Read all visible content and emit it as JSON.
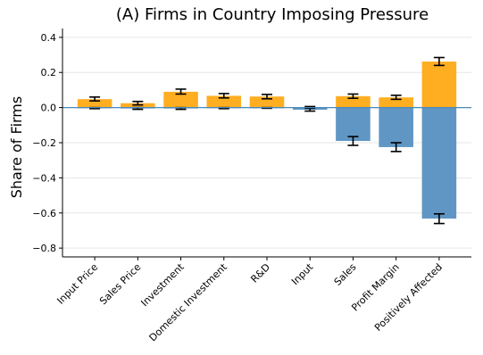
{
  "chart_data": {
    "type": "bar",
    "title": "(A) Firms in Country Imposing Pressure",
    "ylabel": "Share of Firms",
    "xlabel": "",
    "ylim": [
      -0.85,
      0.45
    ],
    "yticks": [
      "0.4",
      "0.2",
      "0.0",
      "−0.2",
      "−0.4",
      "−0.6",
      "−0.8"
    ],
    "ytick_values": [
      0.4,
      0.2,
      0.0,
      -0.2,
      -0.4,
      -0.6,
      -0.8
    ],
    "categories": [
      "Input Price",
      "Sales Price",
      "Investment",
      "Domestic Investment",
      "R&D",
      "Input",
      "Sales",
      "Profit Margin",
      "Positively Affected"
    ],
    "grid": true,
    "series": [
      {
        "color": "#FFAE22",
        "values": [
          0.048,
          0.025,
          0.09,
          0.067,
          0.063,
          0.003,
          0.065,
          0.058,
          0.262
        ],
        "err_low": [
          0.038,
          0.015,
          0.077,
          0.055,
          0.05,
          0.0,
          0.053,
          0.047,
          0.24
        ],
        "err_high": [
          0.06,
          0.035,
          0.105,
          0.08,
          0.075,
          0.006,
          0.077,
          0.07,
          0.285
        ]
      },
      {
        "color": "#6096C4",
        "values": [
          -0.003,
          -0.005,
          -0.005,
          -0.003,
          -0.002,
          -0.012,
          -0.19,
          -0.225,
          -0.632
        ],
        "err_low": [
          -0.006,
          -0.01,
          -0.01,
          -0.006,
          -0.004,
          -0.02,
          -0.215,
          -0.25,
          -0.66
        ],
        "err_high": [
          0.0,
          0.0,
          0.0,
          0.0,
          0.0,
          -0.004,
          -0.165,
          -0.2,
          -0.605
        ]
      }
    ],
    "zero_line_color": "#4a8ab8"
  }
}
